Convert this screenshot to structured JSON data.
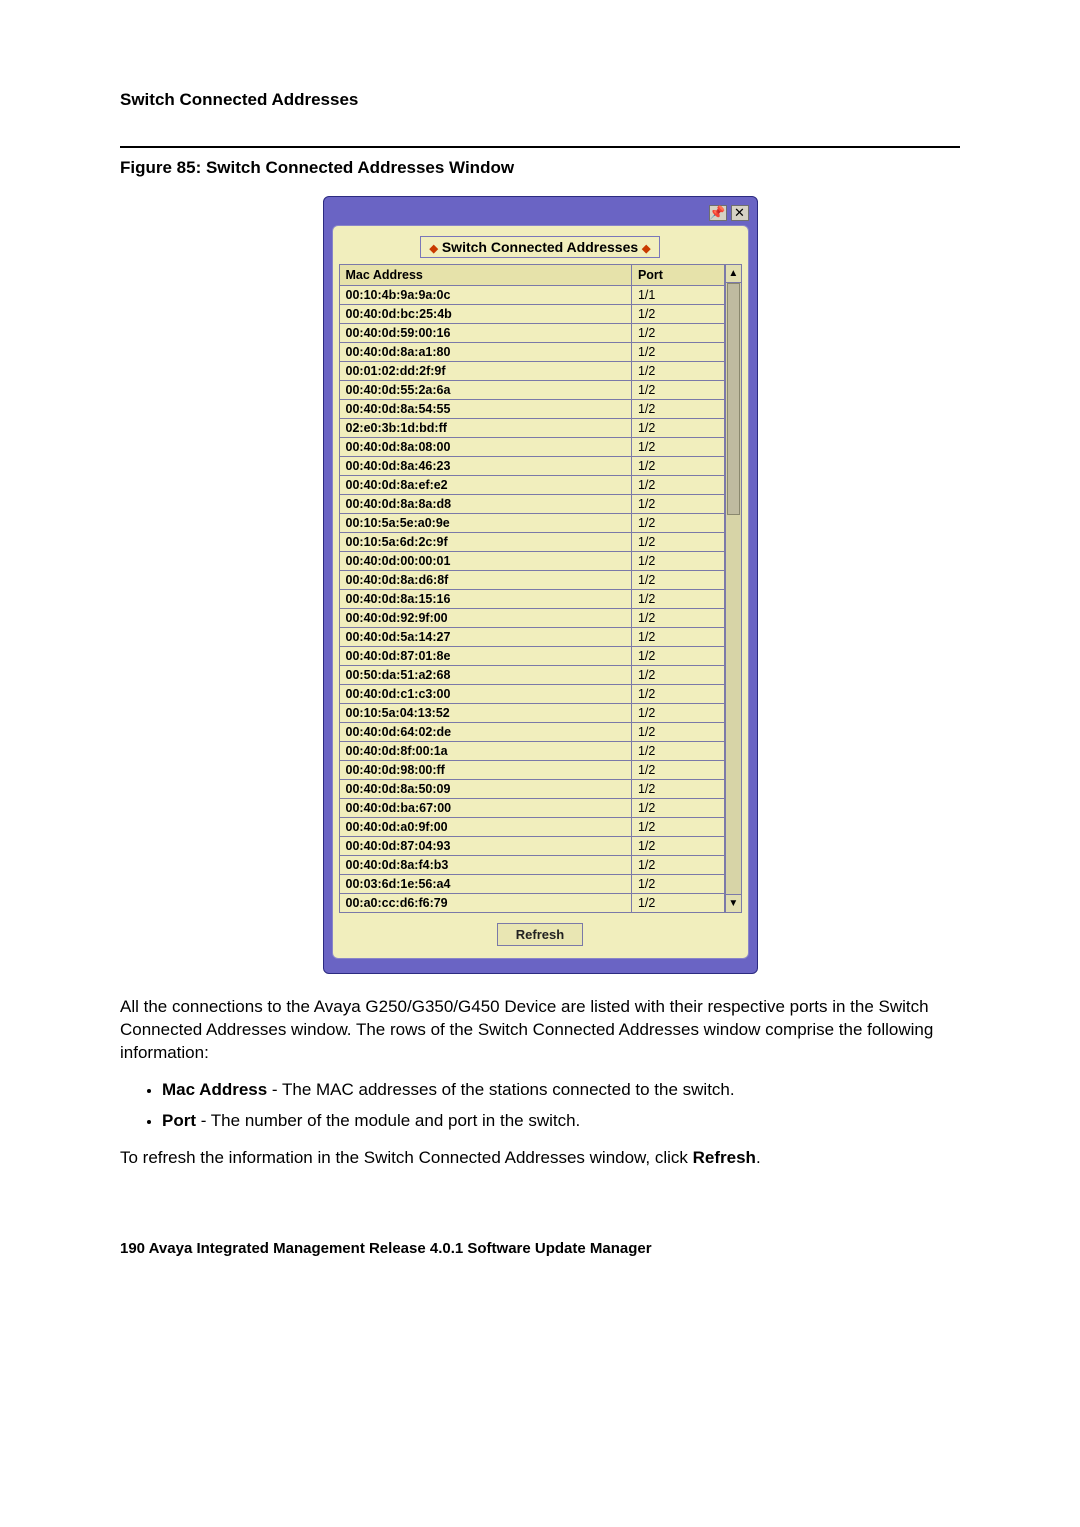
{
  "section_title": "Switch Connected Addresses",
  "figure_title": "Figure 85: Switch Connected Addresses Window",
  "window": {
    "panel_title": "Switch Connected Addresses",
    "columns": [
      "Mac Address",
      "Port"
    ],
    "rows": [
      [
        "00:10:4b:9a:9a:0c",
        "1/1"
      ],
      [
        "00:40:0d:bc:25:4b",
        "1/2"
      ],
      [
        "00:40:0d:59:00:16",
        "1/2"
      ],
      [
        "00:40:0d:8a:a1:80",
        "1/2"
      ],
      [
        "00:01:02:dd:2f:9f",
        "1/2"
      ],
      [
        "00:40:0d:55:2a:6a",
        "1/2"
      ],
      [
        "00:40:0d:8a:54:55",
        "1/2"
      ],
      [
        "02:e0:3b:1d:bd:ff",
        "1/2"
      ],
      [
        "00:40:0d:8a:08:00",
        "1/2"
      ],
      [
        "00:40:0d:8a:46:23",
        "1/2"
      ],
      [
        "00:40:0d:8a:ef:e2",
        "1/2"
      ],
      [
        "00:40:0d:8a:8a:d8",
        "1/2"
      ],
      [
        "00:10:5a:5e:a0:9e",
        "1/2"
      ],
      [
        "00:10:5a:6d:2c:9f",
        "1/2"
      ],
      [
        "00:40:0d:00:00:01",
        "1/2"
      ],
      [
        "00:40:0d:8a:d6:8f",
        "1/2"
      ],
      [
        "00:40:0d:8a:15:16",
        "1/2"
      ],
      [
        "00:40:0d:92:9f:00",
        "1/2"
      ],
      [
        "00:40:0d:5a:14:27",
        "1/2"
      ],
      [
        "00:40:0d:87:01:8e",
        "1/2"
      ],
      [
        "00:50:da:51:a2:68",
        "1/2"
      ],
      [
        "00:40:0d:c1:c3:00",
        "1/2"
      ],
      [
        "00:10:5a:04:13:52",
        "1/2"
      ],
      [
        "00:40:0d:64:02:de",
        "1/2"
      ],
      [
        "00:40:0d:8f:00:1a",
        "1/2"
      ],
      [
        "00:40:0d:98:00:ff",
        "1/2"
      ],
      [
        "00:40:0d:8a:50:09",
        "1/2"
      ],
      [
        "00:40:0d:ba:67:00",
        "1/2"
      ],
      [
        "00:40:0d:a0:9f:00",
        "1/2"
      ],
      [
        "00:40:0d:87:04:93",
        "1/2"
      ],
      [
        "00:40:0d:8a:f4:b3",
        "1/2"
      ],
      [
        "00:03:6d:1e:56:a4",
        "1/2"
      ],
      [
        "00:a0:cc:d6:f6:79",
        "1/2"
      ]
    ],
    "refresh_label": "Refresh",
    "pin_icon": "📌",
    "close_icon": "✕",
    "up_arrow": "▲",
    "down_arrow": "▼"
  },
  "paragraph1": "All the connections to the Avaya G250/G350/G450 Device are listed with their respective ports in the Switch Connected Addresses window. The rows of the Switch Connected Addresses window comprise the following information:",
  "bullets": [
    {
      "term": "Mac Address",
      "desc": " - The MAC addresses of the stations connected to the switch."
    },
    {
      "term": "Port",
      "desc": " - The number of the module and port in the switch."
    }
  ],
  "paragraph2_pre": "To refresh the information in the Switch Connected Addresses window, click ",
  "paragraph2_bold": "Refresh",
  "paragraph2_post": ".",
  "footer": "190   Avaya Integrated Management Release 4.0.1 Software Update Manager",
  "colors": {
    "window_bg": "#6a64c4",
    "inner_bg": "#f1eebd",
    "border": "#7b79a8"
  }
}
